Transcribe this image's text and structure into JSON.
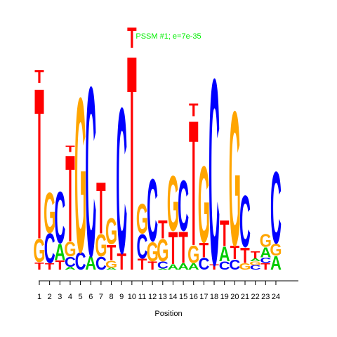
{
  "chart_data": {
    "type": "sequence-logo",
    "title": "PSSM #1; e=7e-35",
    "xlabel": "Position",
    "ylabel": "",
    "colors": {
      "A": "#00cc00",
      "C": "#0000ff",
      "G": "#ffa500",
      "T": "#ff0000"
    },
    "positions": [
      {
        "pos": 1,
        "stack": [
          {
            "letter": "T",
            "height": 0.4
          },
          {
            "letter": "G",
            "height": 1.25
          },
          {
            "letter": "T",
            "height": 8.2
          },
          {
            "letter": "T",
            "height": 0.7
          }
        ]
      },
      {
        "pos": 2,
        "stack": [
          {
            "letter": "T",
            "height": 0.35
          },
          {
            "letter": "C",
            "height": 1.6
          },
          {
            "letter": "G",
            "height": 2.2
          }
        ]
      },
      {
        "pos": 3,
        "stack": [
          {
            "letter": "T",
            "height": 0.5
          },
          {
            "letter": "A",
            "height": 0.9
          },
          {
            "letter": "C",
            "height": 2.8
          }
        ]
      },
      {
        "pos": 4,
        "stack": [
          {
            "letter": "A",
            "height": 0.15
          },
          {
            "letter": "C",
            "height": 0.55
          },
          {
            "letter": "G",
            "height": 0.8
          },
          {
            "letter": "T",
            "height": 4.7
          },
          {
            "letter": "T",
            "height": 0.35
          }
        ]
      },
      {
        "pos": 5,
        "stack": [
          {
            "letter": "C",
            "height": 0.95
          },
          {
            "letter": "G",
            "height": 8.4
          }
        ]
      },
      {
        "pos": 6,
        "stack": [
          {
            "letter": "A",
            "height": 0.75
          },
          {
            "letter": "C",
            "height": 9.2
          }
        ]
      },
      {
        "pos": 7,
        "stack": [
          {
            "letter": "C",
            "height": 0.7
          },
          {
            "letter": "G",
            "height": 1.2
          },
          {
            "letter": "T",
            "height": 2.8
          }
        ]
      },
      {
        "pos": 8,
        "stack": [
          {
            "letter": "A",
            "height": 0.1
          },
          {
            "letter": "G",
            "height": 0.4
          },
          {
            "letter": "T",
            "height": 0.85
          },
          {
            "letter": "G",
            "height": 1.4
          }
        ]
      },
      {
        "pos": 9,
        "stack": [
          {
            "letter": "T",
            "height": 0.9
          },
          {
            "letter": "C",
            "height": 7.9
          }
        ]
      },
      {
        "pos": 10,
        "stack": [
          {
            "letter": "T",
            "height": 11.7
          },
          {
            "letter": "T",
            "height": 1.1
          }
        ]
      },
      {
        "pos": 11,
        "stack": [
          {
            "letter": "T",
            "height": 0.6
          },
          {
            "letter": "C",
            "height": 1.3
          },
          {
            "letter": "G",
            "height": 1.6
          }
        ]
      },
      {
        "pos": 12,
        "stack": [
          {
            "letter": "T",
            "height": 0.45
          },
          {
            "letter": "G",
            "height": 1.05
          },
          {
            "letter": "C",
            "height": 3.4
          }
        ]
      },
      {
        "pos": 13,
        "stack": [
          {
            "letter": "A",
            "height": 0.05
          },
          {
            "letter": "C",
            "height": 0.4
          },
          {
            "letter": "G",
            "height": 1.2
          },
          {
            "letter": "T",
            "height": 1.0
          }
        ]
      },
      {
        "pos": 14,
        "stack": [
          {
            "letter": "A",
            "height": 0.3
          },
          {
            "letter": "T",
            "height": 1.75
          },
          {
            "letter": "G",
            "height": 3.0
          }
        ]
      },
      {
        "pos": 15,
        "stack": [
          {
            "letter": "A",
            "height": 0.35
          },
          {
            "letter": "T",
            "height": 1.7
          },
          {
            "letter": "C",
            "height": 2.75
          }
        ]
      },
      {
        "pos": 16,
        "stack": [
          {
            "letter": "A",
            "height": 0.35
          },
          {
            "letter": "G",
            "height": 0.95
          },
          {
            "letter": "T",
            "height": 6.8
          },
          {
            "letter": "T",
            "height": 0.7
          }
        ]
      },
      {
        "pos": 17,
        "stack": [
          {
            "letter": "C",
            "height": 0.65
          },
          {
            "letter": "T",
            "height": 0.8
          },
          {
            "letter": "G",
            "height": 4.15
          }
        ]
      },
      {
        "pos": 18,
        "stack": [
          {
            "letter": "T",
            "height": 0.3
          },
          {
            "letter": "C",
            "height": 10.1
          }
        ]
      },
      {
        "pos": 19,
        "stack": [
          {
            "letter": "C",
            "height": 0.45
          },
          {
            "letter": "A",
            "height": 0.8
          },
          {
            "letter": "T",
            "height": 1.4
          }
        ]
      },
      {
        "pos": 20,
        "stack": [
          {
            "letter": "C",
            "height": 0.55
          },
          {
            "letter": "T",
            "height": 0.75
          },
          {
            "letter": "G",
            "height": 7.3
          }
        ]
      },
      {
        "pos": 21,
        "stack": [
          {
            "letter": "G",
            "height": 0.35
          },
          {
            "letter": "T",
            "height": 0.85
          },
          {
            "letter": "C",
            "height": 2.8
          }
        ]
      },
      {
        "pos": 22,
        "stack": [
          {
            "letter": "C",
            "height": 0.25
          },
          {
            "letter": "G",
            "height": 0.2
          },
          {
            "letter": "A",
            "height": 0.15
          },
          {
            "letter": "T",
            "height": 0.4
          }
        ]
      },
      {
        "pos": 23,
        "stack": [
          {
            "letter": "T",
            "height": 0.35
          },
          {
            "letter": "C",
            "height": 0.3
          },
          {
            "letter": "A",
            "height": 0.55
          },
          {
            "letter": "G",
            "height": 0.7
          }
        ]
      },
      {
        "pos": 24,
        "stack": [
          {
            "letter": "A",
            "height": 0.75
          },
          {
            "letter": "G",
            "height": 0.65
          },
          {
            "letter": "C",
            "height": 3.9
          }
        ]
      }
    ]
  }
}
